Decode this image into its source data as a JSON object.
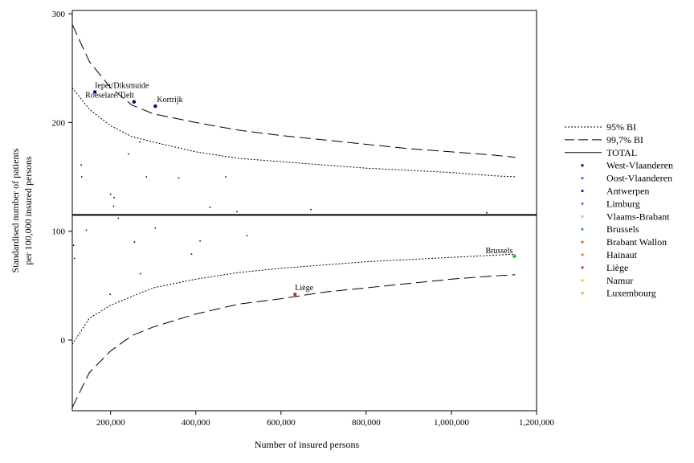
{
  "chart_data": {
    "type": "scatter",
    "title": "",
    "xlabel": "Number of insured persons",
    "ylabel_line1": "Standardised number of patients",
    "ylabel_line2": "per 100,000 insured persons",
    "xlim": [
      110000,
      1200000
    ],
    "ylim": [
      -65,
      303
    ],
    "x_ticks": [
      200000,
      400000,
      600000,
      800000,
      1000000,
      1200000
    ],
    "x_tick_labels": [
      "200,000",
      "400,000",
      "600,000",
      "800,000",
      "1,000,000",
      "1,200,000"
    ],
    "y_ticks": [
      0,
      100,
      200,
      300
    ],
    "y_tick_labels": [
      "0",
      "100",
      "200",
      "300"
    ],
    "grid": false,
    "legend_position": "right",
    "total_value": 115,
    "bands": [
      {
        "name": "95% BI",
        "style": "dotted",
        "x": [
          110000,
          150000,
          200000,
          250000,
          300000,
          400000,
          500000,
          600000,
          700000,
          800000,
          900000,
          1000000,
          1100000,
          1150000
        ],
        "upper": [
          232,
          212,
          197,
          187,
          182,
          173,
          167,
          164,
          161,
          158,
          156,
          154,
          151,
          150
        ],
        "lower": [
          -4,
          20,
          32,
          40,
          48,
          56,
          62,
          66,
          69,
          72,
          74,
          76,
          78,
          79
        ]
      },
      {
        "name": "99,7% BI",
        "style": "dashed",
        "x": [
          110000,
          150000,
          200000,
          250000,
          300000,
          400000,
          500000,
          600000,
          700000,
          800000,
          900000,
          1000000,
          1100000,
          1150000
        ],
        "upper": [
          290,
          256,
          232,
          216,
          208,
          200,
          193,
          188,
          184,
          180,
          176,
          173,
          170,
          168
        ],
        "lower": [
          -62,
          -30,
          -10,
          4,
          12,
          24,
          33,
          38,
          44,
          48,
          52,
          56,
          59,
          60
        ]
      }
    ],
    "legend": [
      {
        "name": "95% BI",
        "kind": "dotted"
      },
      {
        "name": "99,7% BI",
        "kind": "dashed"
      },
      {
        "name": "TOTAL",
        "kind": "solid"
      },
      {
        "name": "West-Vlaanderen",
        "kind": "dot",
        "color": "#000080"
      },
      {
        "name": "Oost-Vlaanderen",
        "kind": "dot",
        "color": "#4a6fd8"
      },
      {
        "name": "Antwerpen",
        "kind": "dot",
        "color": "#1a1ad0"
      },
      {
        "name": "Limburg",
        "kind": "dot",
        "color": "#3f8ee8"
      },
      {
        "name": "Vlaams-Brabant",
        "kind": "dot",
        "color": "#8ec8f0"
      },
      {
        "name": "Brussels",
        "kind": "dot",
        "color": "#2eb82e"
      },
      {
        "name": "Brabant Wallon",
        "kind": "dot",
        "color": "#e06020"
      },
      {
        "name": "Hainaut",
        "kind": "dot",
        "color": "#f07828"
      },
      {
        "name": "Liège",
        "kind": "dot",
        "color": "#b04020"
      },
      {
        "name": "Namur",
        "kind": "dot",
        "color": "#f8c800"
      },
      {
        "name": "Luxembourg",
        "kind": "dot",
        "color": "#f0a030"
      }
    ],
    "labeled_points": [
      {
        "label": "Ieper/Diksmuide",
        "x": 163000,
        "y": 228,
        "color": "#000080",
        "anchor": "start",
        "dx": 0,
        "dy": -5
      },
      {
        "label": "Roeselare/Tielt",
        "x": 255000,
        "y": 219,
        "color": "#000080",
        "anchor": "end",
        "dx": 0,
        "dy": -5
      },
      {
        "label": "Kortrijk",
        "x": 305000,
        "y": 215,
        "color": "#000080",
        "anchor": "start",
        "dx": 2,
        "dy": -5
      },
      {
        "label": "Brussels",
        "x": 1148000,
        "y": 77,
        "color": "#2eb82e",
        "anchor": "end",
        "dx": -2,
        "dy": -4
      },
      {
        "label": "Liège",
        "x": 633000,
        "y": 42,
        "color": "#b04020",
        "anchor": "start",
        "dx": 0,
        "dy": -5
      }
    ],
    "small_points": [
      {
        "x": 131000,
        "y": 161
      },
      {
        "x": 132000,
        "y": 150
      },
      {
        "x": 242000,
        "y": 171
      },
      {
        "x": 269000,
        "y": 182
      },
      {
        "x": 284000,
        "y": 150
      },
      {
        "x": 360000,
        "y": 149
      },
      {
        "x": 470000,
        "y": 150
      },
      {
        "x": 200000,
        "y": 134
      },
      {
        "x": 208000,
        "y": 131
      },
      {
        "x": 207000,
        "y": 123
      },
      {
        "x": 218000,
        "y": 112
      },
      {
        "x": 433000,
        "y": 122
      },
      {
        "x": 497000,
        "y": 118
      },
      {
        "x": 670000,
        "y": 120
      },
      {
        "x": 1083000,
        "y": 117
      },
      {
        "x": 113000,
        "y": 87
      },
      {
        "x": 115000,
        "y": 75
      },
      {
        "x": 143000,
        "y": 101
      },
      {
        "x": 256000,
        "y": 90
      },
      {
        "x": 305000,
        "y": 103
      },
      {
        "x": 410000,
        "y": 91
      },
      {
        "x": 520000,
        "y": 96
      },
      {
        "x": 390000,
        "y": 79
      },
      {
        "x": 270000,
        "y": 61
      },
      {
        "x": 199000,
        "y": 42
      }
    ]
  }
}
